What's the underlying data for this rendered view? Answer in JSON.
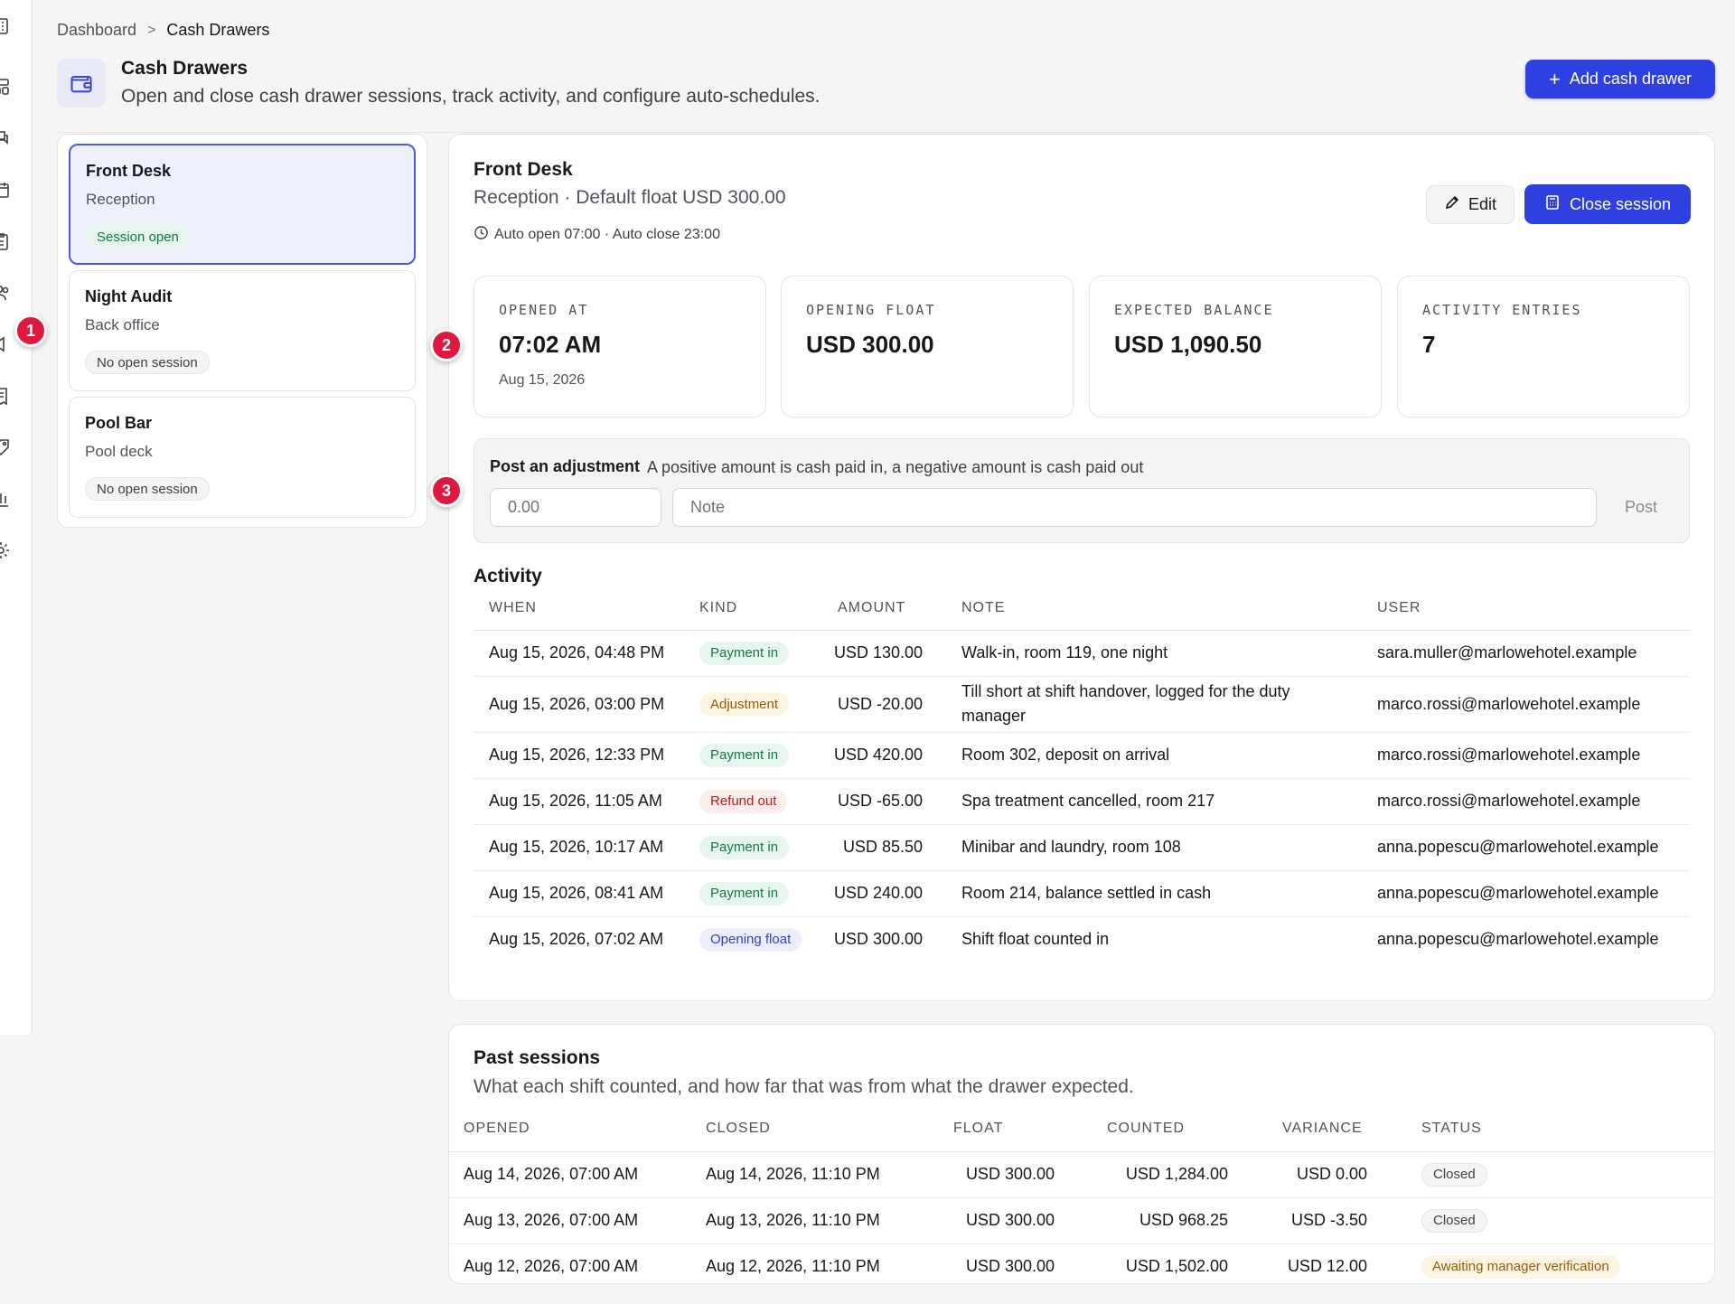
{
  "breadcrumb": {
    "parent": "Dashboard",
    "separator": ">",
    "current": "Cash Drawers"
  },
  "header": {
    "title": "Cash Drawers",
    "subtitle": "Open and close cash drawer sessions, track activity, and configure auto-schedules.",
    "add_button": "Add cash drawer",
    "icon": "wallet-icon"
  },
  "markers": [
    "1",
    "2",
    "3"
  ],
  "drawers": [
    {
      "name": "Front Desk",
      "location": "Reception",
      "status": "Session open",
      "active": true
    },
    {
      "name": "Night Audit",
      "location": "Back office",
      "status": "No open session",
      "active": false
    },
    {
      "name": "Pool Bar",
      "location": "Pool deck",
      "status": "No open session",
      "active": false
    }
  ],
  "detail": {
    "title": "Front Desk",
    "subtitle": "Reception · Default float USD 300.00",
    "schedule": "Auto open 07:00 · Auto close 23:00",
    "edit_button": "Edit",
    "close_button": "Close session",
    "stats": [
      {
        "label": "OPENED AT",
        "value": "07:02 AM",
        "sub": "Aug 15, 2026"
      },
      {
        "label": "OPENING FLOAT",
        "value": "USD 300.00",
        "sub": ""
      },
      {
        "label": "EXPECTED BALANCE",
        "value": "USD 1,090.50",
        "sub": ""
      },
      {
        "label": "ACTIVITY ENTRIES",
        "value": "7",
        "sub": ""
      }
    ],
    "adjustment": {
      "title": "Post an adjustment",
      "hint": "A positive amount is cash paid in, a negative amount is cash paid out",
      "amount_placeholder": "0.00",
      "note_placeholder": "Note",
      "post_button": "Post"
    }
  },
  "activity": {
    "title": "Activity",
    "columns": [
      "WHEN",
      "KIND",
      "AMOUNT",
      "NOTE",
      "USER"
    ],
    "rows": [
      {
        "when": "Aug 15, 2026, 04:48 PM",
        "kind": "Payment in",
        "kind_tone": "green",
        "amount": "USD 130.00",
        "note": "Walk-in, room 119, one night",
        "user": "sara.muller@marlowehotel.example"
      },
      {
        "when": "Aug 15, 2026, 03:00 PM",
        "kind": "Adjustment",
        "kind_tone": "amber",
        "amount": "USD -20.00",
        "note": "Till short at shift handover, logged for the duty manager",
        "user": "marco.rossi@marlowehotel.example"
      },
      {
        "when": "Aug 15, 2026, 12:33 PM",
        "kind": "Payment in",
        "kind_tone": "green",
        "amount": "USD 420.00",
        "note": "Room 302, deposit on arrival",
        "user": "marco.rossi@marlowehotel.example"
      },
      {
        "when": "Aug 15, 2026, 11:05 AM",
        "kind": "Refund out",
        "kind_tone": "red",
        "amount": "USD -65.00",
        "note": "Spa treatment cancelled, room 217",
        "user": "marco.rossi@marlowehotel.example"
      },
      {
        "when": "Aug 15, 2026, 10:17 AM",
        "kind": "Payment in",
        "kind_tone": "green",
        "amount": "USD 85.50",
        "note": "Minibar and laundry, room 108",
        "user": "anna.popescu@marlowehotel.example"
      },
      {
        "when": "Aug 15, 2026, 08:41 AM",
        "kind": "Payment in",
        "kind_tone": "green",
        "amount": "USD 240.00",
        "note": "Room 214, balance settled in cash",
        "user": "anna.popescu@marlowehotel.example"
      },
      {
        "when": "Aug 15, 2026, 07:02 AM",
        "kind": "Opening float",
        "kind_tone": "indigo",
        "amount": "USD 300.00",
        "note": "Shift float counted in",
        "user": "anna.popescu@marlowehotel.example"
      }
    ]
  },
  "past_sessions": {
    "title": "Past sessions",
    "subtitle": "What each shift counted, and how far that was from what the drawer expected.",
    "columns": [
      "OPENED",
      "CLOSED",
      "FLOAT",
      "COUNTED",
      "VARIANCE",
      "STATUS"
    ],
    "rows": [
      {
        "opened": "Aug 14, 2026, 07:00 AM",
        "closed": "Aug 14, 2026, 11:10 PM",
        "float": "USD 300.00",
        "counted": "USD 1,284.00",
        "variance": "USD 0.00",
        "variance_tone": "pos",
        "status": "Closed",
        "status_tone": "gray"
      },
      {
        "opened": "Aug 13, 2026, 07:00 AM",
        "closed": "Aug 13, 2026, 11:10 PM",
        "float": "USD 300.00",
        "counted": "USD 968.25",
        "variance": "USD -3.50",
        "variance_tone": "neg",
        "status": "Closed",
        "status_tone": "gray"
      },
      {
        "opened": "Aug 12, 2026, 07:00 AM",
        "closed": "Aug 12, 2026, 11:10 PM",
        "float": "USD 300.00",
        "counted": "USD 1,502.00",
        "variance": "USD 12.00",
        "variance_tone": "neg",
        "status": "Awaiting manager verification",
        "status_tone": "amber"
      }
    ]
  },
  "colors": {
    "accent": "#2e40e0",
    "marker": "#e0173f",
    "positive": "#0f8a4e",
    "negative": "#d71f28"
  }
}
